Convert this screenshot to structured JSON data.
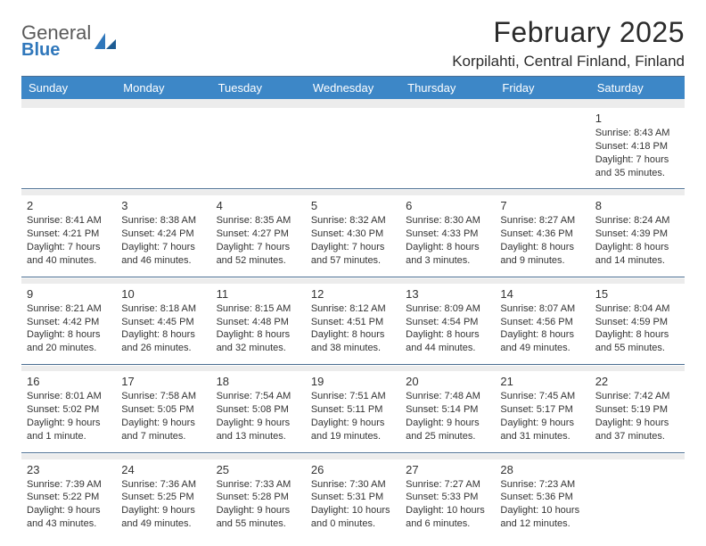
{
  "logo": {
    "word1": "General",
    "word2": "Blue"
  },
  "title": "February 2025",
  "location": "Korpilahti, Central Finland, Finland",
  "colors": {
    "header_bg": "#3d87c7",
    "header_text": "#ffffff",
    "rule": "#4a6e92",
    "filler": "#ececec",
    "text": "#333333",
    "logo_gray": "#5a5a5a",
    "logo_blue": "#2f77bb",
    "page_bg": "#ffffff"
  },
  "typography": {
    "title_fontsize_pt": 24,
    "location_fontsize_pt": 13,
    "weekday_fontsize_pt": 10,
    "daynum_fontsize_pt": 10,
    "facts_fontsize_pt": 8
  },
  "weekdays": [
    "Sunday",
    "Monday",
    "Tuesday",
    "Wednesday",
    "Thursday",
    "Friday",
    "Saturday"
  ],
  "weeks": [
    [
      null,
      null,
      null,
      null,
      null,
      null,
      {
        "n": "1",
        "sunrise": "8:43 AM",
        "sunset": "4:18 PM",
        "daylight": "7 hours and 35 minutes."
      }
    ],
    [
      {
        "n": "2",
        "sunrise": "8:41 AM",
        "sunset": "4:21 PM",
        "daylight": "7 hours and 40 minutes."
      },
      {
        "n": "3",
        "sunrise": "8:38 AM",
        "sunset": "4:24 PM",
        "daylight": "7 hours and 46 minutes."
      },
      {
        "n": "4",
        "sunrise": "8:35 AM",
        "sunset": "4:27 PM",
        "daylight": "7 hours and 52 minutes."
      },
      {
        "n": "5",
        "sunrise": "8:32 AM",
        "sunset": "4:30 PM",
        "daylight": "7 hours and 57 minutes."
      },
      {
        "n": "6",
        "sunrise": "8:30 AM",
        "sunset": "4:33 PM",
        "daylight": "8 hours and 3 minutes."
      },
      {
        "n": "7",
        "sunrise": "8:27 AM",
        "sunset": "4:36 PM",
        "daylight": "8 hours and 9 minutes."
      },
      {
        "n": "8",
        "sunrise": "8:24 AM",
        "sunset": "4:39 PM",
        "daylight": "8 hours and 14 minutes."
      }
    ],
    [
      {
        "n": "9",
        "sunrise": "8:21 AM",
        "sunset": "4:42 PM",
        "daylight": "8 hours and 20 minutes."
      },
      {
        "n": "10",
        "sunrise": "8:18 AM",
        "sunset": "4:45 PM",
        "daylight": "8 hours and 26 minutes."
      },
      {
        "n": "11",
        "sunrise": "8:15 AM",
        "sunset": "4:48 PM",
        "daylight": "8 hours and 32 minutes."
      },
      {
        "n": "12",
        "sunrise": "8:12 AM",
        "sunset": "4:51 PM",
        "daylight": "8 hours and 38 minutes."
      },
      {
        "n": "13",
        "sunrise": "8:09 AM",
        "sunset": "4:54 PM",
        "daylight": "8 hours and 44 minutes."
      },
      {
        "n": "14",
        "sunrise": "8:07 AM",
        "sunset": "4:56 PM",
        "daylight": "8 hours and 49 minutes."
      },
      {
        "n": "15",
        "sunrise": "8:04 AM",
        "sunset": "4:59 PM",
        "daylight": "8 hours and 55 minutes."
      }
    ],
    [
      {
        "n": "16",
        "sunrise": "8:01 AM",
        "sunset": "5:02 PM",
        "daylight": "9 hours and 1 minute."
      },
      {
        "n": "17",
        "sunrise": "7:58 AM",
        "sunset": "5:05 PM",
        "daylight": "9 hours and 7 minutes."
      },
      {
        "n": "18",
        "sunrise": "7:54 AM",
        "sunset": "5:08 PM",
        "daylight": "9 hours and 13 minutes."
      },
      {
        "n": "19",
        "sunrise": "7:51 AM",
        "sunset": "5:11 PM",
        "daylight": "9 hours and 19 minutes."
      },
      {
        "n": "20",
        "sunrise": "7:48 AM",
        "sunset": "5:14 PM",
        "daylight": "9 hours and 25 minutes."
      },
      {
        "n": "21",
        "sunrise": "7:45 AM",
        "sunset": "5:17 PM",
        "daylight": "9 hours and 31 minutes."
      },
      {
        "n": "22",
        "sunrise": "7:42 AM",
        "sunset": "5:19 PM",
        "daylight": "9 hours and 37 minutes."
      }
    ],
    [
      {
        "n": "23",
        "sunrise": "7:39 AM",
        "sunset": "5:22 PM",
        "daylight": "9 hours and 43 minutes."
      },
      {
        "n": "24",
        "sunrise": "7:36 AM",
        "sunset": "5:25 PM",
        "daylight": "9 hours and 49 minutes."
      },
      {
        "n": "25",
        "sunrise": "7:33 AM",
        "sunset": "5:28 PM",
        "daylight": "9 hours and 55 minutes."
      },
      {
        "n": "26",
        "sunrise": "7:30 AM",
        "sunset": "5:31 PM",
        "daylight": "10 hours and 0 minutes."
      },
      {
        "n": "27",
        "sunrise": "7:27 AM",
        "sunset": "5:33 PM",
        "daylight": "10 hours and 6 minutes."
      },
      {
        "n": "28",
        "sunrise": "7:23 AM",
        "sunset": "5:36 PM",
        "daylight": "10 hours and 12 minutes."
      },
      null
    ]
  ],
  "labels": {
    "sunrise": "Sunrise:",
    "sunset": "Sunset:",
    "daylight": "Daylight:"
  }
}
